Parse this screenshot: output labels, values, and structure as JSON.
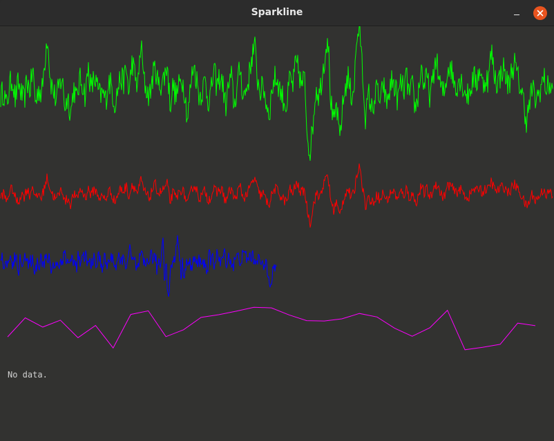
{
  "window": {
    "title": "Sparkline",
    "minimize_icon": "minimize-icon",
    "close_icon": "close-icon",
    "close_color": "#e9541f"
  },
  "empty_message": "No data.",
  "chart_data": [
    {
      "type": "line",
      "name": "",
      "color": "#00ff00",
      "points": 800,
      "values": [
        0.48,
        0.52,
        0.4,
        0.55,
        0.62,
        0.45,
        0.58,
        0.5,
        0.44,
        0.6,
        0.52,
        0.68,
        0.42,
        0.55,
        0.48,
        0.72,
        0.95,
        0.6,
        0.52,
        0.45,
        0.55,
        0.62,
        0.4,
        0.48,
        0.35,
        0.55,
        0.45,
        0.6,
        0.58,
        0.48,
        0.7,
        0.52,
        0.62,
        0.55,
        0.48,
        0.5,
        0.45,
        0.6,
        0.55,
        0.42,
        0.52,
        0.62,
        0.58,
        0.68,
        0.5,
        0.75,
        0.62,
        0.55,
        0.88,
        0.6,
        0.52,
        0.48,
        0.62,
        0.7,
        0.55,
        0.58,
        0.62,
        0.72,
        0.42,
        0.56,
        0.48,
        0.55,
        0.62,
        0.52,
        0.3,
        0.55,
        0.72,
        0.62,
        0.48,
        0.52,
        0.6,
        0.45,
        0.5,
        0.68,
        0.55,
        0.62,
        0.58,
        0.4,
        0.55,
        0.62,
        0.4,
        0.55,
        0.7,
        0.48,
        0.52,
        0.62,
        0.78,
        0.85,
        0.6,
        0.52,
        0.55,
        0.42,
        0.35,
        0.55,
        0.62,
        0.58,
        0.5,
        0.45,
        0.4,
        0.62,
        0.55,
        0.72,
        0.68,
        0.55,
        0.62,
        0.2,
        0.05,
        0.3,
        0.55,
        0.48,
        0.62,
        0.78,
        0.95,
        0.45,
        0.25,
        0.42,
        0.15,
        0.38,
        0.55,
        0.62,
        0.48,
        0.55,
        0.92,
        1.0,
        0.62,
        0.3,
        0.5,
        0.38,
        0.45,
        0.55,
        0.4,
        0.58,
        0.42,
        0.5,
        0.6,
        0.55,
        0.45,
        0.58,
        0.52,
        0.62,
        0.48,
        0.55,
        0.38,
        0.5,
        0.7,
        0.55,
        0.62,
        0.48,
        0.58,
        0.78,
        0.62,
        0.52,
        0.5,
        0.68,
        0.72,
        0.6,
        0.55,
        0.62,
        0.58,
        0.52,
        0.48,
        0.55,
        0.62,
        0.58,
        0.7,
        0.55,
        0.62,
        0.6,
        0.82,
        0.65,
        0.58,
        0.62,
        0.7,
        0.62,
        0.55,
        0.68,
        0.72,
        0.62,
        0.55,
        0.45,
        0.3,
        0.4,
        0.55,
        0.45,
        0.48,
        0.55,
        0.62,
        0.52,
        0.58,
        0.5
      ],
      "ylim": [
        0,
        1
      ]
    },
    {
      "type": "line",
      "name": "",
      "color": "#ff0000",
      "points": 800,
      "values": [
        0.5,
        0.55,
        0.42,
        0.58,
        0.62,
        0.48,
        0.4,
        0.55,
        0.5,
        0.62,
        0.52,
        0.68,
        0.45,
        0.55,
        0.48,
        0.65,
        0.8,
        0.6,
        0.52,
        0.45,
        0.55,
        0.62,
        0.42,
        0.48,
        0.38,
        0.55,
        0.45,
        0.6,
        0.58,
        0.48,
        0.62,
        0.52,
        0.62,
        0.55,
        0.48,
        0.5,
        0.45,
        0.6,
        0.55,
        0.42,
        0.52,
        0.62,
        0.58,
        0.66,
        0.5,
        0.7,
        0.62,
        0.55,
        0.75,
        0.6,
        0.52,
        0.48,
        0.62,
        0.68,
        0.55,
        0.58,
        0.62,
        0.7,
        0.42,
        0.56,
        0.48,
        0.55,
        0.62,
        0.52,
        0.38,
        0.55,
        0.68,
        0.62,
        0.48,
        0.52,
        0.6,
        0.45,
        0.5,
        0.62,
        0.55,
        0.62,
        0.58,
        0.42,
        0.55,
        0.62,
        0.45,
        0.55,
        0.66,
        0.48,
        0.52,
        0.6,
        0.7,
        0.78,
        0.6,
        0.52,
        0.55,
        0.42,
        0.4,
        0.55,
        0.62,
        0.58,
        0.5,
        0.45,
        0.42,
        0.62,
        0.55,
        0.68,
        0.65,
        0.55,
        0.62,
        0.3,
        0.1,
        0.35,
        0.55,
        0.48,
        0.62,
        0.72,
        0.85,
        0.45,
        0.3,
        0.42,
        0.2,
        0.4,
        0.55,
        0.62,
        0.48,
        0.55,
        0.85,
        1.0,
        0.62,
        0.35,
        0.5,
        0.4,
        0.45,
        0.55,
        0.42,
        0.58,
        0.44,
        0.5,
        0.6,
        0.55,
        0.45,
        0.58,
        0.52,
        0.62,
        0.48,
        0.55,
        0.4,
        0.5,
        0.66,
        0.55,
        0.62,
        0.48,
        0.58,
        0.72,
        0.62,
        0.52,
        0.5,
        0.66,
        0.68,
        0.6,
        0.55,
        0.62,
        0.58,
        0.52,
        0.48,
        0.55,
        0.62,
        0.58,
        0.66,
        0.55,
        0.62,
        0.6,
        0.74,
        0.62,
        0.58,
        0.62,
        0.66,
        0.62,
        0.55,
        0.64,
        0.68,
        0.62,
        0.55,
        0.45,
        0.35,
        0.42,
        0.55,
        0.45,
        0.48,
        0.55,
        0.62,
        0.52,
        0.58,
        0.5
      ],
      "ylim": [
        0,
        1
      ]
    },
    {
      "type": "line",
      "name": "",
      "color": "#0000ff",
      "points": 400,
      "values": [
        0.52,
        0.62,
        0.45,
        0.58,
        0.4,
        0.55,
        0.68,
        0.5,
        0.45,
        0.6,
        0.52,
        0.58,
        0.42,
        0.55,
        0.48,
        0.62,
        0.7,
        0.55,
        0.5,
        0.45,
        0.55,
        0.62,
        0.4,
        0.48,
        0.45,
        0.58,
        0.52,
        0.66,
        0.55,
        0.48,
        0.62,
        0.52,
        0.6,
        0.55,
        0.42,
        0.5,
        0.45,
        0.58,
        0.52,
        0.42,
        0.55,
        0.62,
        0.58,
        0.72,
        0.55,
        0.6,
        0.48,
        0.52,
        0.62,
        0.58,
        0.45,
        0.5,
        0.6,
        0.55,
        0.48,
        0.58,
        0.62,
        0.66,
        0.48,
        0.56,
        0.5,
        0.55,
        0.62,
        0.52,
        0.45,
        0.58,
        0.62,
        0.55,
        0.48,
        0.52,
        0.6,
        0.48,
        0.5,
        0.62,
        0.55,
        0.62,
        0.58,
        0.45,
        0.55,
        0.62,
        0.45,
        0.55,
        0.66,
        0.48,
        0.52,
        0.6,
        0.68,
        0.7,
        0.58,
        0.52,
        0.55,
        0.45,
        0.42,
        0.55,
        0.62,
        0.58,
        0.5,
        0.48,
        0.55,
        0.62,
        0.55,
        0.66,
        0.62,
        0.55,
        0.62,
        0.4,
        0.58,
        0.48,
        0.7,
        0.95,
        0.3,
        0.55,
        0.12,
        0.05,
        0.4,
        0.55,
        0.48,
        0.62,
        0.8,
        0.98,
        0.62,
        0.35,
        0.5,
        0.4,
        0.45,
        0.55,
        0.42,
        0.58,
        0.44,
        0.5,
        0.6,
        0.55,
        0.45,
        0.58,
        0.52,
        0.62,
        0.48,
        0.55,
        0.4,
        0.5,
        0.62,
        0.55,
        0.62,
        0.48,
        0.58,
        0.7,
        0.62,
        0.52,
        0.5,
        0.64,
        0.66,
        0.6,
        0.55,
        0.62,
        0.58,
        0.52,
        0.48,
        0.55,
        0.62,
        0.58,
        0.64,
        0.55,
        0.62,
        0.6,
        0.7,
        0.6,
        0.58,
        0.62,
        0.64,
        0.62,
        0.55,
        0.6,
        0.62,
        0.58,
        0.55,
        0.5,
        0.42,
        0.48,
        0.55,
        0.45,
        0.35,
        0.25,
        0.3,
        0.48,
        0.4,
        0.42
      ],
      "ylim": [
        0,
        1
      ]
    },
    {
      "type": "line",
      "name": "",
      "color": "#ff00ff",
      "points": 31,
      "values": [
        0.35,
        0.72,
        0.52,
        0.68,
        0.28,
        0.62,
        0.02,
        1.0,
        0.78,
        0.17,
        0.64,
        0.76,
        0.77,
        0.88,
        0.93,
        0.86,
        0.65,
        0.66,
        0.63,
        0.79,
        0.79,
        0.57,
        0.35,
        0.4,
        1.0,
        0.1,
        0.15,
        0.18,
        0.61,
        0.56
      ],
      "ylim": [
        0,
        1
      ]
    }
  ]
}
